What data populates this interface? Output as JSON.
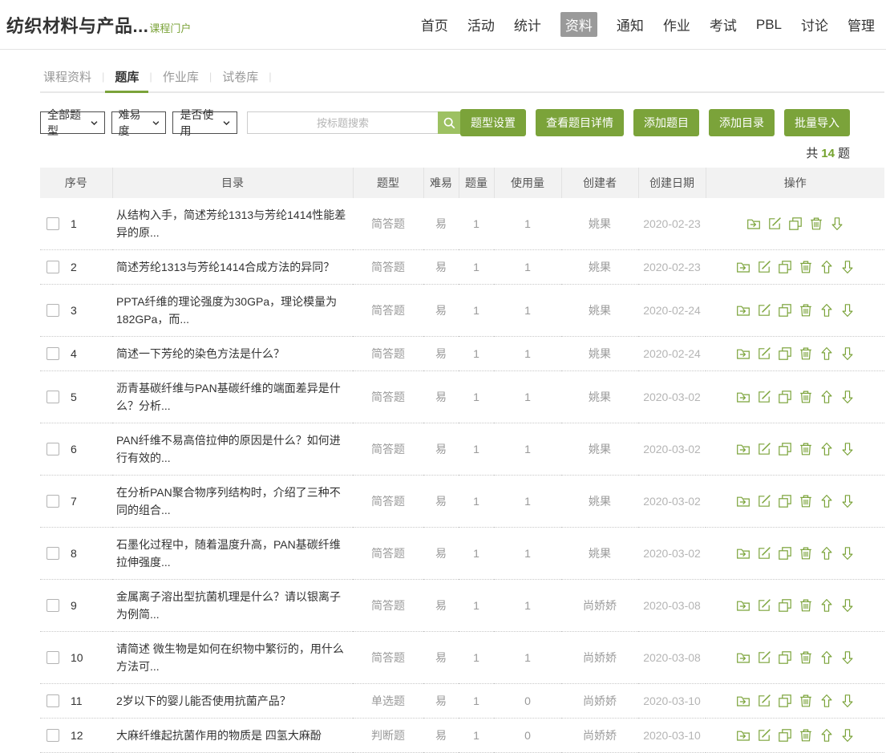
{
  "header": {
    "course_title": "纺织材料与产品...",
    "portal_link": "课程门户",
    "nav": [
      {
        "label": "首页",
        "active": false
      },
      {
        "label": "活动",
        "active": false
      },
      {
        "label": "统计",
        "active": false
      },
      {
        "label": "资料",
        "active": true
      },
      {
        "label": "通知",
        "active": false
      },
      {
        "label": "作业",
        "active": false
      },
      {
        "label": "考试",
        "active": false
      },
      {
        "label": "PBL",
        "active": false
      },
      {
        "label": "讨论",
        "active": false
      },
      {
        "label": "管理",
        "active": false
      }
    ]
  },
  "tabs": [
    {
      "label": "课程资料",
      "active": false
    },
    {
      "label": "题库",
      "active": true
    },
    {
      "label": "作业库",
      "active": false
    },
    {
      "label": "试卷库",
      "active": false
    }
  ],
  "filters": {
    "type_select": "全部题型",
    "difficulty_select": "难易度",
    "usage_select": "是否使用",
    "search_placeholder": "按标题搜索"
  },
  "actions": [
    "题型设置",
    "查看题目详情",
    "添加题目",
    "添加目录",
    "批量导入"
  ],
  "summary": {
    "prefix": "共",
    "count": "14",
    "suffix": "题"
  },
  "table": {
    "headers": [
      "序号",
      "目录",
      "题型",
      "难易",
      "题量",
      "使用量",
      "创建者",
      "创建日期",
      "操作"
    ],
    "rows": [
      {
        "no": "1",
        "title": "从结构入手，简述芳纶1313与芳纶1414性能差异的原...",
        "type": "简答题",
        "difficulty": "易",
        "count": "1",
        "usage": "1",
        "creator": "姚果",
        "date": "2020-02-23",
        "ops": [
          "move-to-folder",
          "edit",
          "copy",
          "delete",
          "move-down"
        ]
      },
      {
        "no": "2",
        "title": "简述芳纶1313与芳纶1414合成方法的异同？",
        "type": "简答题",
        "difficulty": "易",
        "count": "1",
        "usage": "1",
        "creator": "姚果",
        "date": "2020-02-23",
        "ops": [
          "move-to-folder",
          "edit",
          "copy",
          "delete",
          "move-up",
          "move-down"
        ]
      },
      {
        "no": "3",
        "title": "PPTA纤维的理论强度为30GPa，理论模量为182GPa，而...",
        "type": "简答题",
        "difficulty": "易",
        "count": "1",
        "usage": "1",
        "creator": "姚果",
        "date": "2020-02-24",
        "ops": [
          "move-to-folder",
          "edit",
          "copy",
          "delete",
          "move-up",
          "move-down"
        ]
      },
      {
        "no": "4",
        "title": "简述一下芳纶的染色方法是什么？",
        "type": "简答题",
        "difficulty": "易",
        "count": "1",
        "usage": "1",
        "creator": "姚果",
        "date": "2020-02-24",
        "ops": [
          "move-to-folder",
          "edit",
          "copy",
          "delete",
          "move-up",
          "move-down"
        ]
      },
      {
        "no": "5",
        "title": "沥青基碳纤维与PAN基碳纤维的端面差异是什么？分析...",
        "type": "简答题",
        "difficulty": "易",
        "count": "1",
        "usage": "1",
        "creator": "姚果",
        "date": "2020-03-02",
        "ops": [
          "move-to-folder",
          "edit",
          "copy",
          "delete",
          "move-up",
          "move-down"
        ]
      },
      {
        "no": "6",
        "title": "PAN纤维不易高倍拉伸的原因是什么？如何进行有效的...",
        "type": "简答题",
        "difficulty": "易",
        "count": "1",
        "usage": "1",
        "creator": "姚果",
        "date": "2020-03-02",
        "ops": [
          "move-to-folder",
          "edit",
          "copy",
          "delete",
          "move-up",
          "move-down"
        ]
      },
      {
        "no": "7",
        "title": "在分析PAN聚合物序列结构时，介绍了三种不同的组合...",
        "type": "简答题",
        "difficulty": "易",
        "count": "1",
        "usage": "1",
        "creator": "姚果",
        "date": "2020-03-02",
        "ops": [
          "move-to-folder",
          "edit",
          "copy",
          "delete",
          "move-up",
          "move-down"
        ]
      },
      {
        "no": "8",
        "title": "石墨化过程中，随着温度升高，PAN基碳纤维拉伸强度...",
        "type": "简答题",
        "difficulty": "易",
        "count": "1",
        "usage": "1",
        "creator": "姚果",
        "date": "2020-03-02",
        "ops": [
          "move-to-folder",
          "edit",
          "copy",
          "delete",
          "move-up",
          "move-down"
        ]
      },
      {
        "no": "9",
        "title": "金属离子溶出型抗菌机理是什么？请以银离子为例简...",
        "type": "简答题",
        "difficulty": "易",
        "count": "1",
        "usage": "1",
        "creator": "尚娇娇",
        "date": "2020-03-08",
        "ops": [
          "move-to-folder",
          "edit",
          "copy",
          "delete",
          "move-up",
          "move-down"
        ]
      },
      {
        "no": "10",
        "title": "请简述 微生物是如何在织物中繁衍的，用什么方法可...",
        "type": "简答题",
        "difficulty": "易",
        "count": "1",
        "usage": "1",
        "creator": "尚娇娇",
        "date": "2020-03-08",
        "ops": [
          "move-to-folder",
          "edit",
          "copy",
          "delete",
          "move-up",
          "move-down"
        ]
      },
      {
        "no": "11",
        "title": "2岁以下的婴儿能否使用抗菌产品？",
        "type": "单选题",
        "difficulty": "易",
        "count": "1",
        "usage": "0",
        "creator": "尚娇娇",
        "date": "2020-03-10",
        "ops": [
          "move-to-folder",
          "edit",
          "copy",
          "delete",
          "move-up",
          "move-down"
        ]
      },
      {
        "no": "12",
        "title": "大麻纤维起抗菌作用的物质是 四氢大麻酚",
        "type": "判断题",
        "difficulty": "易",
        "count": "1",
        "usage": "0",
        "creator": "尚娇娇",
        "date": "2020-03-10",
        "ops": [
          "move-to-folder",
          "edit",
          "copy",
          "delete",
          "move-up",
          "move-down"
        ]
      }
    ]
  },
  "colors": {
    "accent": "#7ba33a",
    "search_button": "#9dc162",
    "nav_active_bg": "#9a9a9a",
    "count_highlight": "#74a32d"
  }
}
